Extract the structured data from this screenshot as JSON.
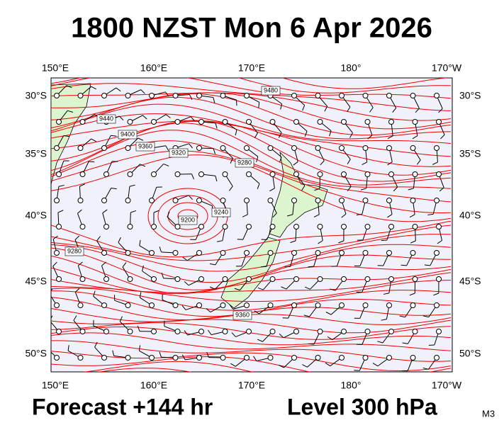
{
  "header": {
    "title": "1800 NZST Mon 6 Apr 2026"
  },
  "map": {
    "lon_labels": [
      "150°E",
      "160°E",
      "170°E",
      "180°",
      "170°W"
    ],
    "lat_labels": [
      "30°S",
      "35°S",
      "40°S",
      "45°S",
      "50°S"
    ],
    "contour_labels": [
      "9480",
      "9440",
      "9400",
      "9360",
      "9320",
      "9280",
      "9240",
      "9200",
      "9280",
      "9360"
    ]
  },
  "footer": {
    "forecast": "Forecast +144 hr",
    "level": "Level 300 hPa",
    "model": "M3"
  }
}
